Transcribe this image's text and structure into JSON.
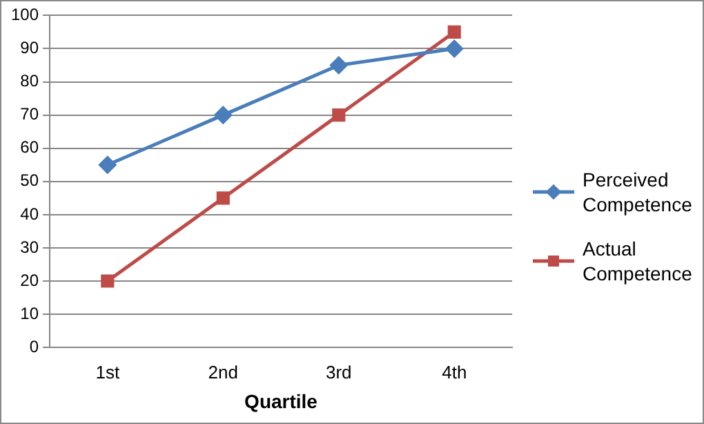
{
  "chart_data": {
    "type": "line",
    "xlabel": "Quartile",
    "categories": [
      "1st",
      "2nd",
      "3rd",
      "4th"
    ],
    "series": [
      {
        "name": "Perceived Competence",
        "color": "#4a7ebb",
        "marker": "diamond",
        "values": [
          55,
          70,
          85,
          90
        ]
      },
      {
        "name": "Actual Competence",
        "color": "#be4b48",
        "marker": "square",
        "values": [
          20,
          45,
          70,
          95
        ]
      }
    ],
    "ylim": [
      0,
      100
    ],
    "yticks": [
      0,
      10,
      20,
      30,
      40,
      50,
      60,
      70,
      80,
      90,
      100
    ],
    "grid": "y",
    "legend": "right"
  }
}
